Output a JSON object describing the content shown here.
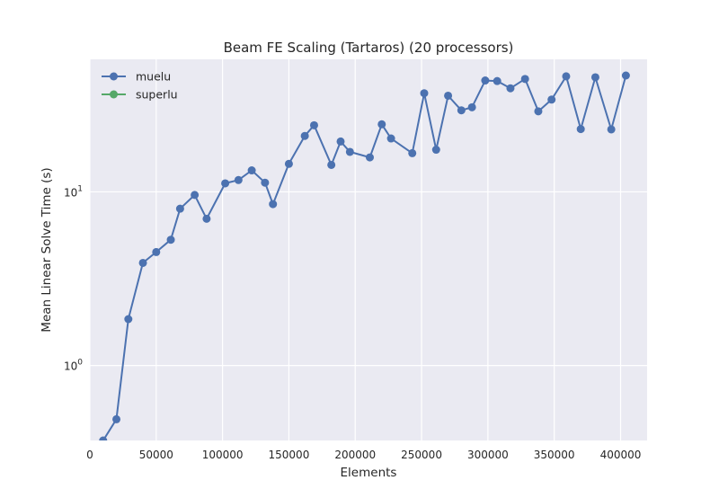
{
  "chart_data": {
    "type": "line",
    "title": "Beam FE Scaling (Tartaros) (20 processors)",
    "xlabel": "Elements",
    "ylabel": "Mean Linear Solve Time (s)",
    "yscale": "log",
    "xlim": [
      0,
      420000
    ],
    "ylim": [
      0.37,
      58
    ],
    "x_ticks": [
      0,
      50000,
      100000,
      150000,
      200000,
      250000,
      300000,
      350000,
      400000
    ],
    "x_tick_labels": [
      "0",
      "50000",
      "100000",
      "150000",
      "200000",
      "250000",
      "300000",
      "350000",
      "400000"
    ],
    "y_ticks": [
      1,
      10
    ],
    "y_tick_labels": [
      {
        "base": "10",
        "exp": "0"
      },
      {
        "base": "10",
        "exp": "1"
      }
    ],
    "grid": true,
    "legend_position": "top-left",
    "colors": {
      "background": "#eaeaf2",
      "grid": "#ffffff",
      "muelu": "#4c72b0",
      "superlu": "#55a868"
    },
    "series": [
      {
        "name": "muelu",
        "color": "#4c72b0",
        "x": [
          10000,
          20000,
          29000,
          40000,
          50000,
          61000,
          68000,
          79000,
          88000,
          102000,
          112000,
          122000,
          132000,
          138000,
          150000,
          162000,
          169000,
          182000,
          189000,
          196000,
          211000,
          220000,
          227000,
          243000,
          252000,
          261000,
          270000,
          280000,
          288000,
          298000,
          307000,
          317000,
          328000,
          338000,
          348000,
          359000,
          370000,
          381000,
          393000,
          404000
        ],
        "y": [
          0.37,
          0.49,
          1.85,
          3.9,
          4.5,
          5.3,
          8.0,
          9.6,
          7.0,
          11.2,
          11.7,
          13.3,
          11.3,
          8.5,
          14.5,
          21.0,
          24.2,
          14.3,
          19.5,
          17.0,
          15.8,
          24.5,
          20.3,
          16.7,
          37.0,
          17.5,
          35.8,
          29.5,
          30.7,
          43.8,
          43.5,
          39.5,
          44.7,
          29.1,
          34.0,
          46.3,
          23.0,
          45.7,
          22.9,
          46.8
        ]
      },
      {
        "name": "superlu",
        "color": "#55a868",
        "x": [],
        "y": []
      }
    ]
  }
}
